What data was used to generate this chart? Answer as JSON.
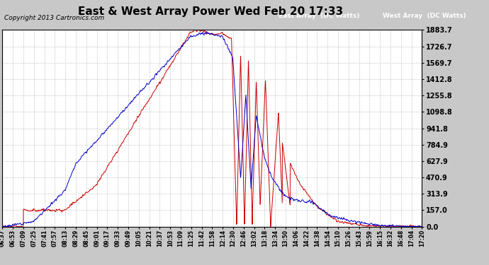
{
  "title": "East & West Array Power Wed Feb 20 17:33",
  "copyright": "Copyright 2013 Cartronics.com",
  "bg_color": "#c8c8c8",
  "plot_bg_color": "#ffffff",
  "grid_color": "#aaaaaa",
  "east_color": "#0000cc",
  "west_color": "#cc0000",
  "east_label": "East Array  (DC Watts)",
  "west_label": "West Array  (DC Watts)",
  "yticks": [
    0.0,
    157.0,
    313.9,
    470.9,
    627.9,
    784.9,
    941.8,
    1098.8,
    1255.8,
    1412.8,
    1569.7,
    1726.7,
    1883.7
  ],
  "ymax": 1883.7,
  "ymin": 0.0,
  "xtick_labels": [
    "06:37",
    "06:53",
    "07:09",
    "07:25",
    "07:41",
    "07:57",
    "08:13",
    "08:29",
    "08:45",
    "09:01",
    "09:17",
    "09:33",
    "09:49",
    "10:05",
    "10:21",
    "10:37",
    "10:53",
    "11:09",
    "11:25",
    "11:42",
    "11:58",
    "12:14",
    "12:30",
    "12:46",
    "13:02",
    "13:18",
    "13:34",
    "13:50",
    "14:06",
    "14:22",
    "14:38",
    "14:54",
    "15:10",
    "15:26",
    "15:43",
    "15:59",
    "16:15",
    "16:32",
    "16:48",
    "17:04",
    "17:20"
  ]
}
